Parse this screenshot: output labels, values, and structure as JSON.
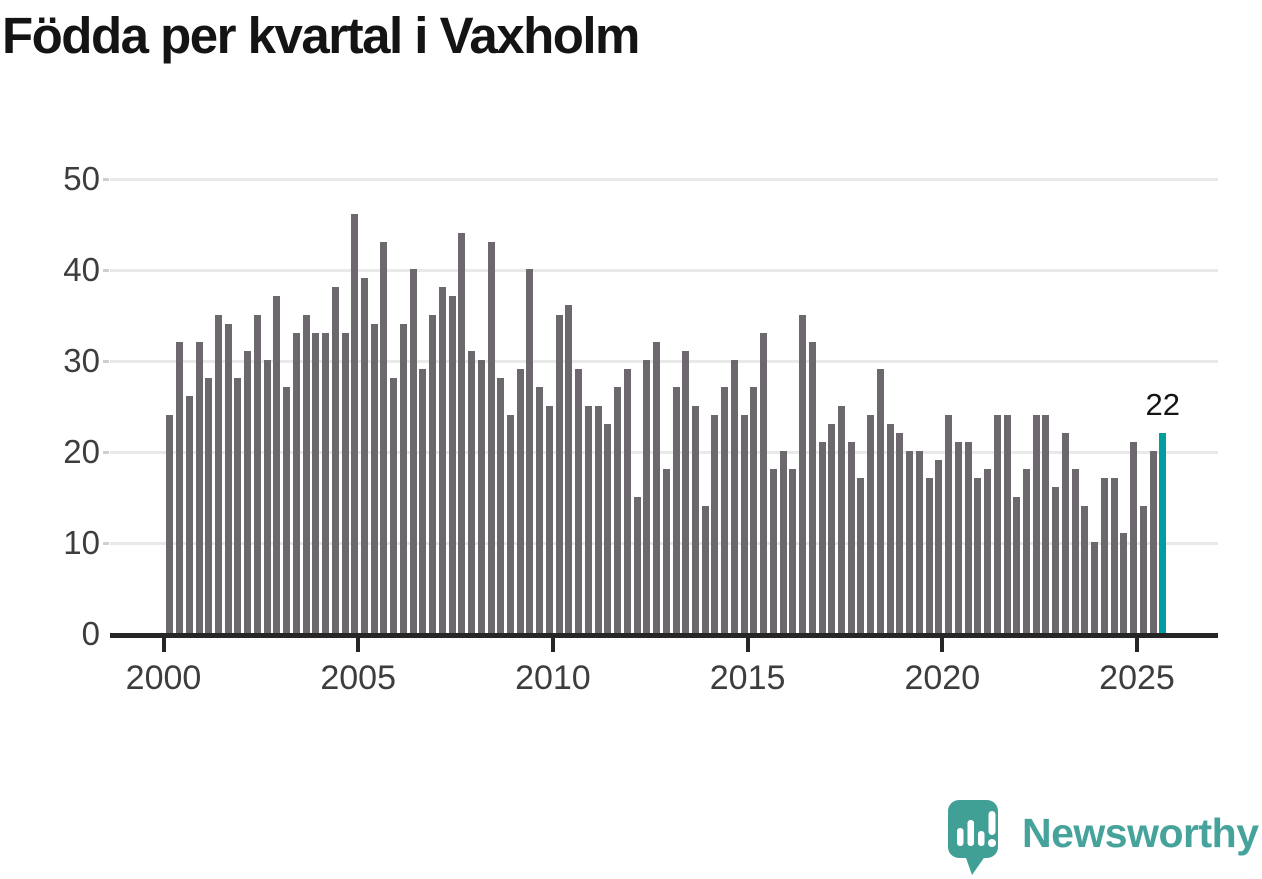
{
  "title": "Födda per kvartal i Vaxholm",
  "branding": {
    "name": "Newsworthy"
  },
  "chart_data": {
    "type": "bar",
    "title": "Födda per kvartal i Vaxholm",
    "xlabel": "",
    "ylabel": "",
    "ylim": [
      0,
      50
    ],
    "y_ticks": [
      0,
      10,
      20,
      30,
      40,
      50
    ],
    "x_tick_labels": [
      "2000",
      "2005",
      "2010",
      "2015",
      "2020",
      "2025"
    ],
    "grid": "horizontal",
    "legend": "none",
    "frequency": "quarterly",
    "years": [
      {
        "year": 2000,
        "values": [
          24,
          32,
          26,
          32
        ]
      },
      {
        "year": 2001,
        "values": [
          28,
          35,
          34,
          28
        ]
      },
      {
        "year": 2002,
        "values": [
          31,
          35,
          30,
          37
        ]
      },
      {
        "year": 2003,
        "values": [
          27,
          33,
          35,
          33
        ]
      },
      {
        "year": 2004,
        "values": [
          33,
          38,
          33,
          46
        ]
      },
      {
        "year": 2005,
        "values": [
          39,
          34,
          43,
          28
        ]
      },
      {
        "year": 2006,
        "values": [
          34,
          40,
          29,
          35
        ]
      },
      {
        "year": 2007,
        "values": [
          38,
          37,
          44,
          31
        ]
      },
      {
        "year": 2008,
        "values": [
          30,
          43,
          28,
          24
        ]
      },
      {
        "year": 2009,
        "values": [
          29,
          40,
          27,
          25
        ]
      },
      {
        "year": 2010,
        "values": [
          35,
          36,
          29,
          25
        ]
      },
      {
        "year": 2011,
        "values": [
          25,
          23,
          27,
          29
        ]
      },
      {
        "year": 2012,
        "values": [
          15,
          30,
          32,
          18
        ]
      },
      {
        "year": 2013,
        "values": [
          27,
          31,
          25,
          14
        ]
      },
      {
        "year": 2014,
        "values": [
          24,
          27,
          30,
          24
        ]
      },
      {
        "year": 2015,
        "values": [
          27,
          33,
          18,
          20
        ]
      },
      {
        "year": 2016,
        "values": [
          18,
          35,
          32,
          21
        ]
      },
      {
        "year": 2017,
        "values": [
          23,
          25,
          21,
          17
        ]
      },
      {
        "year": 2018,
        "values": [
          24,
          29,
          23,
          22
        ]
      },
      {
        "year": 2019,
        "values": [
          20,
          20,
          17,
          19
        ]
      },
      {
        "year": 2020,
        "values": [
          24,
          21,
          21,
          17
        ]
      },
      {
        "year": 2021,
        "values": [
          18,
          24,
          24,
          15
        ]
      },
      {
        "year": 2022,
        "values": [
          18,
          24,
          24,
          16
        ]
      },
      {
        "year": 2023,
        "values": [
          22,
          18,
          14,
          10
        ]
      },
      {
        "year": 2024,
        "values": [
          17,
          17,
          11,
          21
        ]
      },
      {
        "year": 2025,
        "values": [
          14,
          20,
          22
        ]
      }
    ],
    "highlight": {
      "value": 22,
      "label": "22"
    },
    "colors": {
      "bar": "#6C686E",
      "highlight": "#009EA0",
      "axis": "#262626",
      "tick_label": "#3D3D3D",
      "gridline": "#E9E9E9",
      "y_tick_mark": "#CFCFCF",
      "title": "#141414",
      "value_label": "#141414",
      "logo_teal": "#41A096",
      "logo_text": "#46A39B"
    }
  }
}
